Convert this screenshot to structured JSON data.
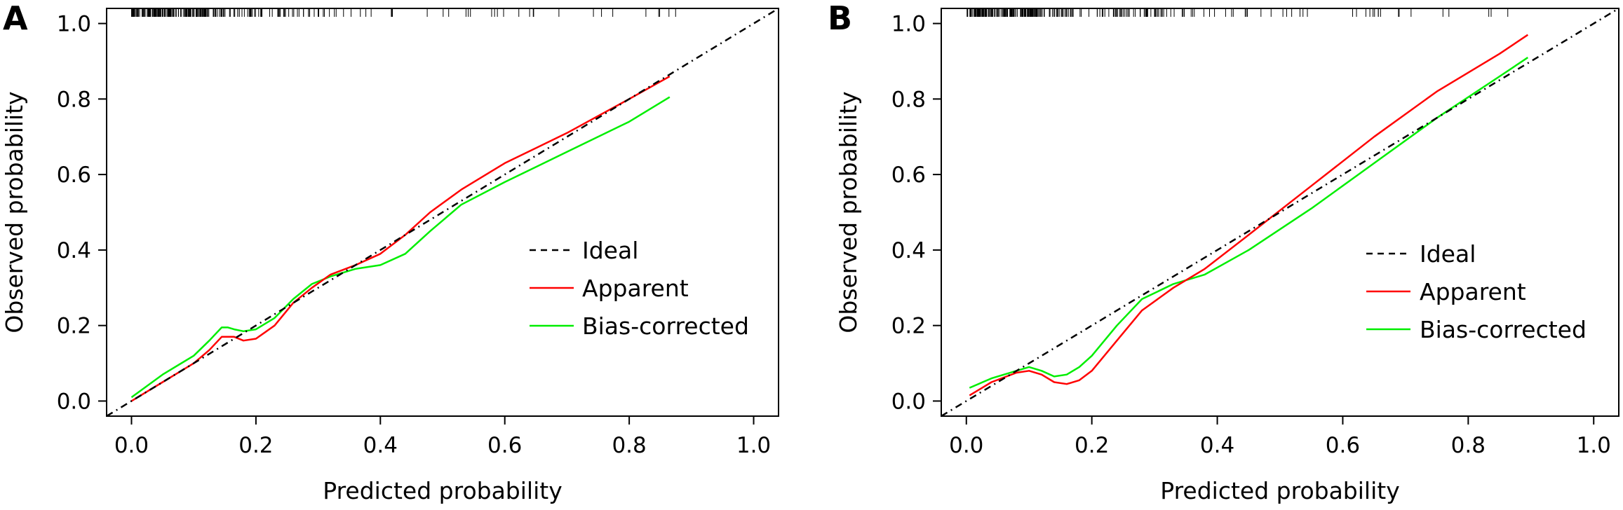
{
  "chart_data": [
    {
      "type": "line",
      "panel_label": "A",
      "xlabel": "Predicted probability",
      "ylabel": "Observed probability",
      "xlim": [
        -0.04,
        1.04
      ],
      "ylim": [
        -0.04,
        1.04
      ],
      "x_ticks": [
        "0.0",
        "0.2",
        "0.4",
        "0.6",
        "0.8",
        "1.0"
      ],
      "y_ticks": [
        "0.0",
        "0.2",
        "0.4",
        "0.6",
        "0.8",
        "1.0"
      ],
      "legend_position": "bottom-right",
      "grid": false,
      "series": [
        {
          "name": "Ideal",
          "style": "dashed",
          "color": "#000000",
          "x": [
            -0.04,
            1.04
          ],
          "y": [
            -0.04,
            1.04
          ]
        },
        {
          "name": "Apparent",
          "style": "solid",
          "color": "#ff0000",
          "x": [
            0.0,
            0.05,
            0.1,
            0.125,
            0.145,
            0.165,
            0.18,
            0.2,
            0.23,
            0.26,
            0.29,
            0.32,
            0.36,
            0.4,
            0.44,
            0.48,
            0.53,
            0.6,
            0.7,
            0.8,
            0.865
          ],
          "y": [
            0.0,
            0.05,
            0.1,
            0.135,
            0.17,
            0.17,
            0.16,
            0.165,
            0.2,
            0.26,
            0.3,
            0.335,
            0.36,
            0.39,
            0.44,
            0.5,
            0.56,
            0.63,
            0.71,
            0.8,
            0.86
          ]
        },
        {
          "name": "Bias-corrected",
          "style": "solid",
          "color": "#00ee00",
          "x": [
            0.0,
            0.05,
            0.1,
            0.125,
            0.145,
            0.155,
            0.165,
            0.18,
            0.2,
            0.23,
            0.26,
            0.29,
            0.32,
            0.36,
            0.4,
            0.44,
            0.48,
            0.53,
            0.6,
            0.7,
            0.8,
            0.865
          ],
          "y": [
            0.01,
            0.07,
            0.12,
            0.16,
            0.195,
            0.195,
            0.19,
            0.185,
            0.19,
            0.22,
            0.27,
            0.31,
            0.33,
            0.35,
            0.36,
            0.39,
            0.45,
            0.52,
            0.58,
            0.66,
            0.74,
            0.805
          ]
        }
      ]
    },
    {
      "type": "line",
      "panel_label": "B",
      "xlabel": "Predicted probability",
      "ylabel": "Observed probability",
      "xlim": [
        -0.04,
        1.04
      ],
      "ylim": [
        -0.04,
        1.04
      ],
      "x_ticks": [
        "0.0",
        "0.2",
        "0.4",
        "0.6",
        "0.8",
        "1.0"
      ],
      "y_ticks": [
        "0.0",
        "0.2",
        "0.4",
        "0.6",
        "0.8",
        "1.0"
      ],
      "legend_position": "bottom-right",
      "grid": false,
      "series": [
        {
          "name": "Ideal",
          "style": "dashed",
          "color": "#000000",
          "x": [
            -0.04,
            1.04
          ],
          "y": [
            -0.04,
            1.04
          ]
        },
        {
          "name": "Apparent",
          "style": "solid",
          "color": "#ff0000",
          "x": [
            0.005,
            0.04,
            0.08,
            0.1,
            0.12,
            0.14,
            0.16,
            0.18,
            0.2,
            0.24,
            0.28,
            0.33,
            0.38,
            0.45,
            0.55,
            0.65,
            0.75,
            0.85,
            0.895
          ],
          "y": [
            0.015,
            0.05,
            0.075,
            0.08,
            0.07,
            0.05,
            0.045,
            0.055,
            0.08,
            0.16,
            0.24,
            0.3,
            0.35,
            0.44,
            0.57,
            0.7,
            0.82,
            0.92,
            0.97
          ]
        },
        {
          "name": "Bias-corrected",
          "style": "solid",
          "color": "#00ee00",
          "x": [
            0.005,
            0.04,
            0.08,
            0.1,
            0.12,
            0.14,
            0.16,
            0.18,
            0.2,
            0.24,
            0.28,
            0.33,
            0.38,
            0.45,
            0.55,
            0.65,
            0.75,
            0.85,
            0.895
          ],
          "y": [
            0.035,
            0.06,
            0.08,
            0.09,
            0.08,
            0.065,
            0.07,
            0.09,
            0.12,
            0.2,
            0.27,
            0.31,
            0.335,
            0.4,
            0.51,
            0.63,
            0.75,
            0.86,
            0.91
          ]
        }
      ]
    }
  ]
}
